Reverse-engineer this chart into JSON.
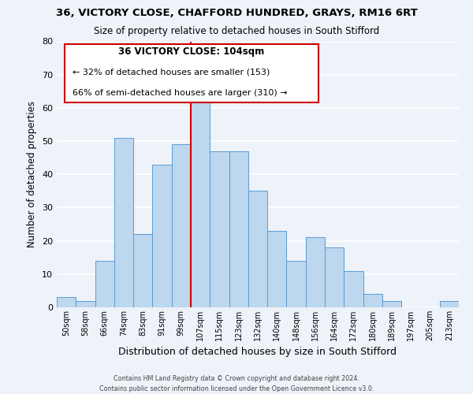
{
  "title1": "36, VICTORY CLOSE, CHAFFORD HUNDRED, GRAYS, RM16 6RT",
  "title2": "Size of property relative to detached houses in South Stifford",
  "xlabel": "Distribution of detached houses by size in South Stifford",
  "ylabel": "Number of detached properties",
  "bar_labels": [
    "50sqm",
    "58sqm",
    "66sqm",
    "74sqm",
    "83sqm",
    "91sqm",
    "99sqm",
    "107sqm",
    "115sqm",
    "123sqm",
    "132sqm",
    "140sqm",
    "148sqm",
    "156sqm",
    "164sqm",
    "172sqm",
    "180sqm",
    "189sqm",
    "197sqm",
    "205sqm",
    "213sqm"
  ],
  "bar_heights": [
    3,
    2,
    14,
    51,
    22,
    43,
    49,
    63,
    47,
    47,
    35,
    23,
    14,
    21,
    18,
    11,
    4,
    2,
    0,
    0,
    2
  ],
  "bar_color": "#bdd7ee",
  "bar_edge_color": "#5b9bd5",
  "vline_x_idx": 7,
  "vline_color": "#cc0000",
  "annotation_title": "36 VICTORY CLOSE: 104sqm",
  "annotation_line1": "← 32% of detached houses are smaller (153)",
  "annotation_line2": "66% of semi-detached houses are larger (310) →",
  "annotation_box_edge": "#cc0000",
  "ylim": [
    0,
    80
  ],
  "yticks": [
    0,
    10,
    20,
    30,
    40,
    50,
    60,
    70,
    80
  ],
  "footer1": "Contains HM Land Registry data © Crown copyright and database right 2024.",
  "footer2": "Contains public sector information licensed under the Open Government Licence v3.0.",
  "bg_color": "#eef2f9",
  "grid_color": "#ffffff"
}
